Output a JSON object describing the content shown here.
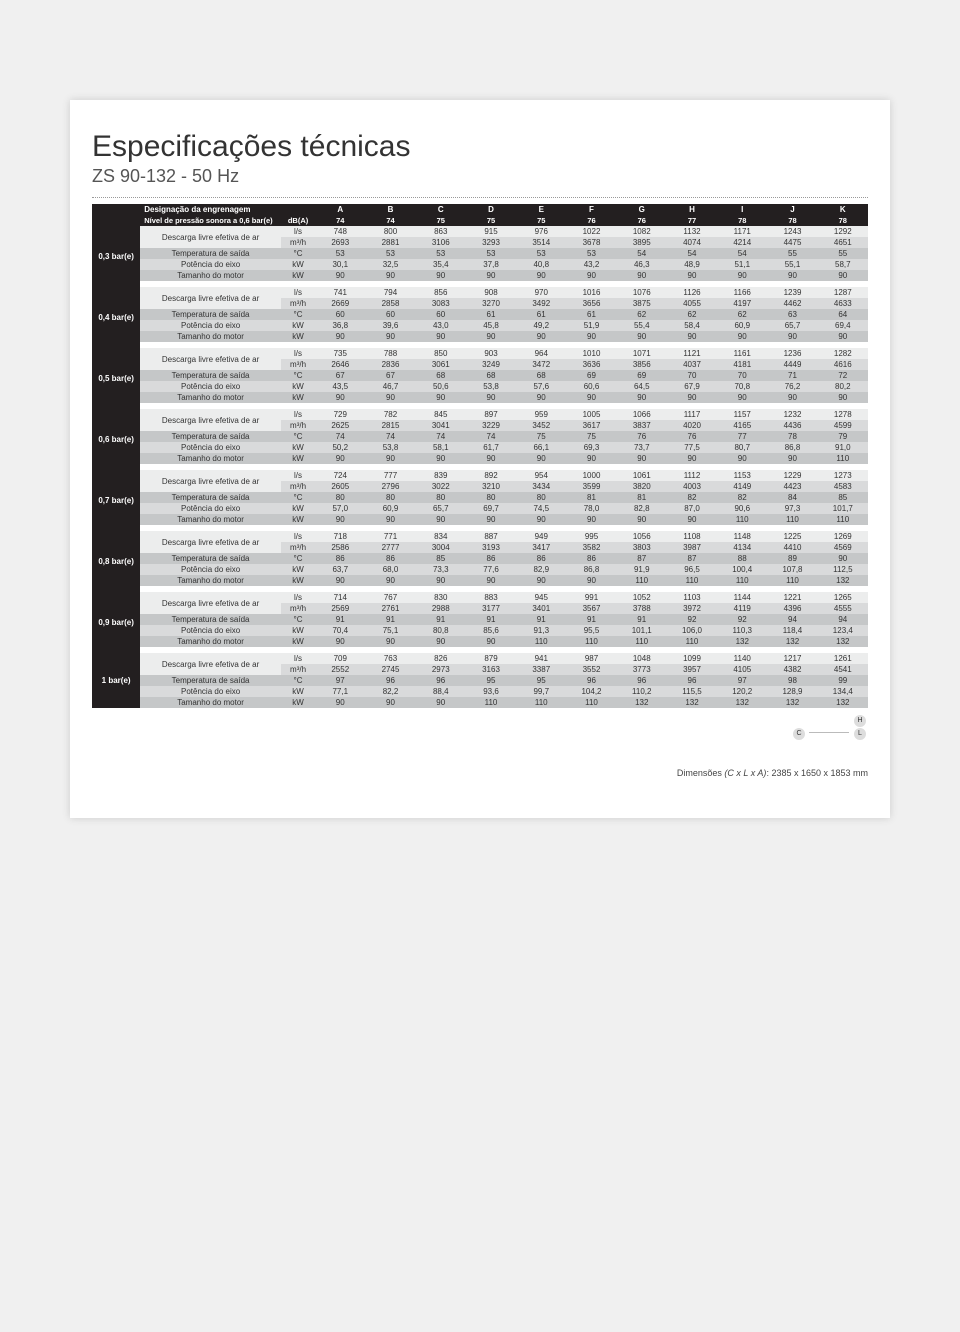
{
  "title": "Especificações técnicas",
  "subtitle": "ZS 90-132 - 50 Hz",
  "header": {
    "gear_label": "Designação da engrenagem",
    "cols": [
      "A",
      "B",
      "C",
      "D",
      "E",
      "F",
      "G",
      "H",
      "I",
      "J",
      "K"
    ]
  },
  "noise": {
    "label": "Nível de pressão sonora a 0,6 bar(e)",
    "unit": "dB(A)",
    "values": [
      74,
      74,
      75,
      75,
      75,
      76,
      76,
      77,
      78,
      78,
      78
    ]
  },
  "row_labels": {
    "fad": "Descarga livre efetiva de ar",
    "temp": "Temperatura de saída",
    "shaft": "Potência do eixo",
    "motor": "Tamanho do motor",
    "unit_ls": "l/s",
    "unit_m3h": "m³/h",
    "unit_c": "°C",
    "unit_kw": "kW"
  },
  "pressures": [
    {
      "label": "0,3 bar(e)",
      "ls": [
        748,
        800,
        863,
        915,
        976,
        1022,
        1082,
        1132,
        1171,
        1243,
        1292
      ],
      "m3h": [
        2693,
        2881,
        3106,
        3293,
        3514,
        3678,
        3895,
        4074,
        4214,
        4475,
        4651
      ],
      "temp": [
        53,
        53,
        53,
        53,
        53,
        53,
        54,
        54,
        54,
        55,
        55
      ],
      "shaft": [
        "30,1",
        "32,5",
        "35,4",
        "37,8",
        "40,8",
        "43,2",
        "46,3",
        "48,9",
        "51,1",
        "55,1",
        "58,7"
      ],
      "motor": [
        90,
        90,
        90,
        90,
        90,
        90,
        90,
        90,
        90,
        90,
        90
      ]
    },
    {
      "label": "0,4 bar(e)",
      "ls": [
        741,
        794,
        856,
        908,
        970,
        1016,
        1076,
        1126,
        1166,
        1239,
        1287
      ],
      "m3h": [
        2669,
        2858,
        3083,
        3270,
        3492,
        3656,
        3875,
        4055,
        4197,
        4462,
        4633
      ],
      "temp": [
        60,
        60,
        60,
        61,
        61,
        61,
        62,
        62,
        62,
        63,
        64
      ],
      "shaft": [
        "36,8",
        "39,6",
        "43,0",
        "45,8",
        "49,2",
        "51,9",
        "55,4",
        "58,4",
        "60,9",
        "65,7",
        "69,4"
      ],
      "motor": [
        90,
        90,
        90,
        90,
        90,
        90,
        90,
        90,
        90,
        90,
        90
      ]
    },
    {
      "label": "0,5 bar(e)",
      "ls": [
        735,
        788,
        850,
        903,
        964,
        1010,
        1071,
        1121,
        1161,
        1236,
        1282
      ],
      "m3h": [
        2646,
        2836,
        3061,
        3249,
        3472,
        3636,
        3856,
        4037,
        4181,
        4449,
        4616
      ],
      "temp": [
        67,
        67,
        68,
        68,
        68,
        69,
        69,
        70,
        70,
        71,
        72
      ],
      "shaft": [
        "43,5",
        "46,7",
        "50,6",
        "53,8",
        "57,6",
        "60,6",
        "64,5",
        "67,9",
        "70,8",
        "76,2",
        "80,2"
      ],
      "motor": [
        90,
        90,
        90,
        90,
        90,
        90,
        90,
        90,
        90,
        90,
        90
      ]
    },
    {
      "label": "0,6 bar(e)",
      "ls": [
        729,
        782,
        845,
        897,
        959,
        1005,
        1066,
        1117,
        1157,
        1232,
        1278
      ],
      "m3h": [
        2625,
        2815,
        3041,
        3229,
        3452,
        3617,
        3837,
        4020,
        4165,
        4436,
        4599
      ],
      "temp": [
        74,
        74,
        74,
        74,
        75,
        75,
        76,
        76,
        77,
        78,
        79
      ],
      "shaft": [
        "50,2",
        "53,8",
        "58,1",
        "61,7",
        "66,1",
        "69,3",
        "73,7",
        "77,5",
        "80,7",
        "86,8",
        "91,0"
      ],
      "motor": [
        90,
        90,
        90,
        90,
        90,
        90,
        90,
        90,
        90,
        90,
        110
      ]
    },
    {
      "label": "0,7 bar(e)",
      "ls": [
        724,
        777,
        839,
        892,
        954,
        1000,
        1061,
        1112,
        1153,
        1229,
        1273
      ],
      "m3h": [
        2605,
        2796,
        3022,
        3210,
        3434,
        3599,
        3820,
        4003,
        4149,
        4423,
        4583
      ],
      "temp": [
        80,
        80,
        80,
        80,
        80,
        81,
        81,
        82,
        82,
        84,
        85
      ],
      "shaft": [
        "57,0",
        "60,9",
        "65,7",
        "69,7",
        "74,5",
        "78,0",
        "82,8",
        "87,0",
        "90,6",
        "97,3",
        "101,7"
      ],
      "motor": [
        90,
        90,
        90,
        90,
        90,
        90,
        90,
        90,
        110,
        110,
        110
      ]
    },
    {
      "label": "0,8 bar(e)",
      "ls": [
        718,
        771,
        834,
        887,
        949,
        995,
        1056,
        1108,
        1148,
        1225,
        1269
      ],
      "m3h": [
        2586,
        2777,
        3004,
        3193,
        3417,
        3582,
        3803,
        3987,
        4134,
        4410,
        4569
      ],
      "temp": [
        86,
        86,
        85,
        86,
        86,
        86,
        87,
        87,
        88,
        89,
        90
      ],
      "shaft": [
        "63,7",
        "68,0",
        "73,3",
        "77,6",
        "82,9",
        "86,8",
        "91,9",
        "96,5",
        "100,4",
        "107,8",
        "112,5"
      ],
      "motor": [
        90,
        90,
        90,
        90,
        90,
        90,
        110,
        110,
        110,
        110,
        132
      ]
    },
    {
      "label": "0,9 bar(e)",
      "ls": [
        714,
        767,
        830,
        883,
        945,
        991,
        1052,
        1103,
        1144,
        1221,
        1265
      ],
      "m3h": [
        2569,
        2761,
        2988,
        3177,
        3401,
        3567,
        3788,
        3972,
        4119,
        4396,
        4555
      ],
      "temp": [
        91,
        91,
        91,
        91,
        91,
        91,
        91,
        92,
        92,
        94,
        94
      ],
      "shaft": [
        "70,4",
        "75,1",
        "80,8",
        "85,6",
        "91,3",
        "95,5",
        "101,1",
        "106,0",
        "110,3",
        "118,4",
        "123,4"
      ],
      "motor": [
        90,
        90,
        90,
        90,
        110,
        110,
        110,
        110,
        132,
        132,
        132
      ]
    },
    {
      "label": "1 bar(e)",
      "ls": [
        709,
        763,
        826,
        879,
        941,
        987,
        1048,
        1099,
        1140,
        1217,
        1261
      ],
      "m3h": [
        2552,
        2745,
        2973,
        3163,
        3387,
        3552,
        3773,
        3957,
        4105,
        4382,
        4541
      ],
      "temp": [
        97,
        96,
        96,
        95,
        95,
        96,
        96,
        96,
        97,
        98,
        99
      ],
      "shaft": [
        "77,1",
        "82,2",
        "88,4",
        "93,6",
        "99,7",
        "104,2",
        "110,2",
        "115,5",
        "120,2",
        "128,9",
        "134,4"
      ],
      "motor": [
        90,
        90,
        90,
        110,
        110,
        110,
        132,
        132,
        132,
        132,
        132
      ]
    }
  ],
  "dimensions": {
    "label_prefix": "Dimensões ",
    "label_ital": "(C x L x A)",
    "label_suffix": ": 2385 x 1650 x 1853 mm",
    "h": "H",
    "c": "C",
    "l": "L"
  }
}
